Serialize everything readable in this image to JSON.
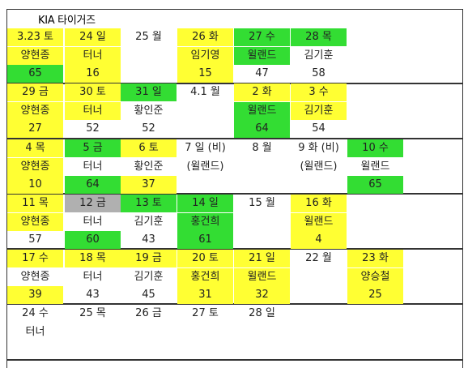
{
  "title": "KIA 타이거즈",
  "colors": {
    "yellow": "#ffff33",
    "green": "#33dd33",
    "gray": "#b0b0b0"
  },
  "weeks": [
    {
      "days": [
        {
          "date": "3.23 토",
          "pitcher": "양현종",
          "value": "65",
          "date_bg": "yellow",
          "pitcher_bg": "yellow",
          "value_bg": "green"
        },
        {
          "date": "24 일",
          "pitcher": "터너",
          "value": "16",
          "date_bg": "yellow",
          "pitcher_bg": "yellow",
          "value_bg": "yellow"
        },
        {
          "date": "25 월",
          "pitcher": "",
          "value": "",
          "date_bg": "",
          "pitcher_bg": "",
          "value_bg": ""
        },
        {
          "date": "26 화",
          "pitcher": "임기영",
          "value": "15",
          "date_bg": "yellow",
          "pitcher_bg": "yellow",
          "value_bg": "yellow"
        },
        {
          "date": "27 수",
          "pitcher": "윌랜드",
          "value": "47",
          "date_bg": "green",
          "pitcher_bg": "green",
          "value_bg": ""
        },
        {
          "date": "28 목",
          "pitcher": "김기훈",
          "value": "58",
          "date_bg": "green",
          "pitcher_bg": "",
          "value_bg": ""
        }
      ]
    },
    {
      "days": [
        {
          "date": "29 금",
          "pitcher": "양현종",
          "value": "27",
          "date_bg": "yellow",
          "pitcher_bg": "yellow",
          "value_bg": "yellow"
        },
        {
          "date": "30 토",
          "pitcher": "터너",
          "value": "52",
          "date_bg": "yellow",
          "pitcher_bg": "yellow",
          "value_bg": ""
        },
        {
          "date": "31 일",
          "pitcher": "황인준",
          "value": "52",
          "date_bg": "green",
          "pitcher_bg": "",
          "value_bg": ""
        },
        {
          "date": "4.1 월",
          "pitcher": "",
          "value": "",
          "date_bg": "",
          "pitcher_bg": "",
          "value_bg": ""
        },
        {
          "date": "2 화",
          "pitcher": "윌랜드",
          "value": "64",
          "date_bg": "yellow",
          "pitcher_bg": "green",
          "value_bg": "green"
        },
        {
          "date": "3 수",
          "pitcher": "김기훈",
          "value": "54",
          "date_bg": "yellow",
          "pitcher_bg": "yellow",
          "value_bg": ""
        }
      ]
    },
    {
      "days": [
        {
          "date": "4 목",
          "pitcher": "양현종",
          "value": "10",
          "date_bg": "yellow",
          "pitcher_bg": "yellow",
          "value_bg": "yellow"
        },
        {
          "date": "5 금",
          "pitcher": "터너",
          "value": "64",
          "date_bg": "green",
          "pitcher_bg": "",
          "value_bg": "green"
        },
        {
          "date": "6 토",
          "pitcher": "황인준",
          "value": "37",
          "date_bg": "yellow",
          "pitcher_bg": "",
          "value_bg": "yellow"
        },
        {
          "date": "7 일 (비)",
          "pitcher": "(윌랜드)",
          "value": "",
          "date_bg": "",
          "pitcher_bg": "",
          "value_bg": ""
        },
        {
          "date": "8 월",
          "pitcher": "",
          "value": "",
          "date_bg": "",
          "pitcher_bg": "",
          "value_bg": ""
        },
        {
          "date": "9 화 (비)",
          "pitcher": "(윌랜드)",
          "value": "",
          "date_bg": "",
          "pitcher_bg": "",
          "value_bg": ""
        },
        {
          "date": "10 수",
          "pitcher": "윌랜드",
          "value": "65",
          "date_bg": "green",
          "pitcher_bg": "",
          "value_bg": "green"
        }
      ]
    },
    {
      "days": [
        {
          "date": "11 목",
          "pitcher": "양현종",
          "value": "57",
          "date_bg": "yellow",
          "pitcher_bg": "yellow",
          "value_bg": ""
        },
        {
          "date": "12 금",
          "pitcher": "터너",
          "value": "60",
          "date_bg": "gray",
          "pitcher_bg": "",
          "value_bg": "green"
        },
        {
          "date": "13 토",
          "pitcher": "김기훈",
          "value": "43",
          "date_bg": "green",
          "pitcher_bg": "",
          "value_bg": ""
        },
        {
          "date": "14 일",
          "pitcher": "홍건희",
          "value": "61",
          "date_bg": "green",
          "pitcher_bg": "green",
          "value_bg": "green"
        },
        {
          "date": "15 월",
          "pitcher": "",
          "value": "",
          "date_bg": "",
          "pitcher_bg": "",
          "value_bg": ""
        },
        {
          "date": "16 화",
          "pitcher": "윌랜드",
          "value": "4",
          "date_bg": "yellow",
          "pitcher_bg": "yellow",
          "value_bg": "yellow"
        }
      ]
    },
    {
      "days": [
        {
          "date": "17 수",
          "pitcher": "양현종",
          "value": "39",
          "date_bg": "yellow",
          "pitcher_bg": "",
          "value_bg": "yellow"
        },
        {
          "date": "18 목",
          "pitcher": "터너",
          "value": "43",
          "date_bg": "yellow",
          "pitcher_bg": "",
          "value_bg": ""
        },
        {
          "date": "19 금",
          "pitcher": "김기훈",
          "value": "45",
          "date_bg": "yellow",
          "pitcher_bg": "",
          "value_bg": ""
        },
        {
          "date": "20 토",
          "pitcher": "홍건희",
          "value": "31",
          "date_bg": "yellow",
          "pitcher_bg": "yellow",
          "value_bg": "yellow"
        },
        {
          "date": "21 일",
          "pitcher": "윌랜드",
          "value": "32",
          "date_bg": "yellow",
          "pitcher_bg": "yellow",
          "value_bg": "yellow"
        },
        {
          "date": "22 월",
          "pitcher": "",
          "value": "",
          "date_bg": "",
          "pitcher_bg": "",
          "value_bg": ""
        },
        {
          "date": "23 화",
          "pitcher": "양승철",
          "value": "25",
          "date_bg": "yellow",
          "pitcher_bg": "yellow",
          "value_bg": "yellow"
        }
      ]
    },
    {
      "days": [
        {
          "date": "24 수",
          "pitcher": "터너",
          "value": "",
          "date_bg": "",
          "pitcher_bg": "",
          "value_bg": ""
        },
        {
          "date": "25 목",
          "pitcher": "",
          "value": "",
          "date_bg": "",
          "pitcher_bg": "",
          "value_bg": ""
        },
        {
          "date": "26 금",
          "pitcher": "",
          "value": "",
          "date_bg": "",
          "pitcher_bg": "",
          "value_bg": ""
        },
        {
          "date": "27 토",
          "pitcher": "",
          "value": "",
          "date_bg": "",
          "pitcher_bg": "",
          "value_bg": ""
        },
        {
          "date": "28 일",
          "pitcher": "",
          "value": "",
          "date_bg": "",
          "pitcher_bg": "",
          "value_bg": ""
        }
      ]
    }
  ]
}
